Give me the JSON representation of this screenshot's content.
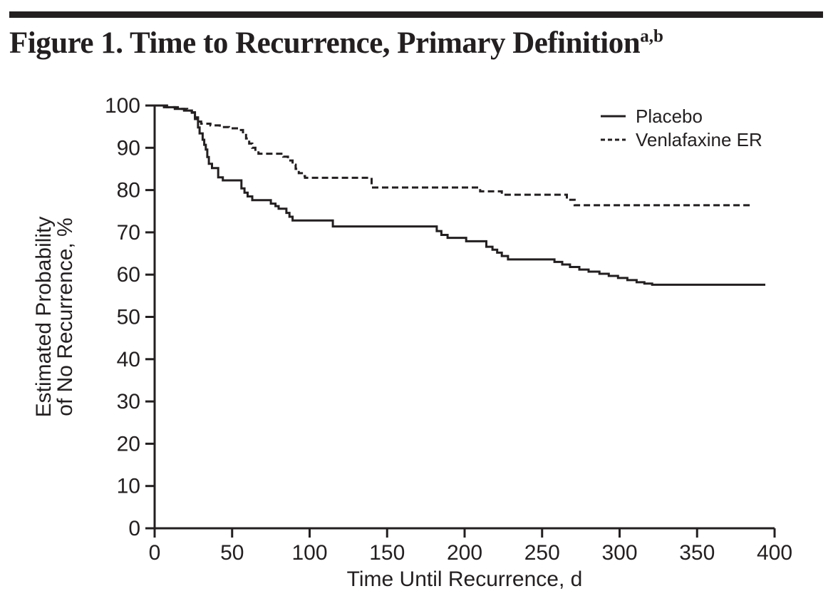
{
  "header": {
    "title": "Figure 1. Time to Recurrence, Primary Definition",
    "title_superscript": "a,b"
  },
  "colors": {
    "ink": "#231f20",
    "background": "#ffffff"
  },
  "chart_data": {
    "type": "line",
    "subtype": "kaplan-meier-step",
    "title": "",
    "xlabel": "Time Until Recurrence, d",
    "ylabel_lines": [
      "Estimated Probability",
      "of No Recurrence, %"
    ],
    "xlim": [
      0,
      400
    ],
    "ylim": [
      0,
      100
    ],
    "xticks": [
      0,
      50,
      100,
      150,
      200,
      250,
      300,
      350,
      400
    ],
    "yticks": [
      0,
      10,
      20,
      30,
      40,
      50,
      60,
      70,
      80,
      90,
      100
    ],
    "grid": false,
    "legend": {
      "position": "top-right",
      "entries": [
        {
          "label": "Placebo",
          "style": "solid"
        },
        {
          "label": "Venlafaxine ER",
          "style": "dashed"
        }
      ]
    },
    "series": [
      {
        "name": "Placebo",
        "style": "solid",
        "points": [
          [
            0,
            100
          ],
          [
            6,
            99.6
          ],
          [
            13,
            99.2
          ],
          [
            19,
            98.8
          ],
          [
            24,
            98.4
          ],
          [
            26,
            96.8
          ],
          [
            28,
            94.8
          ],
          [
            29,
            93.4
          ],
          [
            31,
            91.9
          ],
          [
            32,
            90.7
          ],
          [
            33,
            89.6
          ],
          [
            34,
            87.8
          ],
          [
            35,
            86.2
          ],
          [
            37,
            85.2
          ],
          [
            41,
            83.0
          ],
          [
            44,
            82.3
          ],
          [
            56,
            80.4
          ],
          [
            58,
            79.4
          ],
          [
            60,
            78.5
          ],
          [
            63,
            77.6
          ],
          [
            75,
            76.8
          ],
          [
            78,
            76.2
          ],
          [
            80,
            75.6
          ],
          [
            85,
            74.6
          ],
          [
            87,
            73.7
          ],
          [
            89,
            72.8
          ],
          [
            115,
            71.4
          ],
          [
            182,
            70.3
          ],
          [
            185,
            69.4
          ],
          [
            189,
            68.7
          ],
          [
            201,
            67.9
          ],
          [
            214,
            66.6
          ],
          [
            218,
            65.9
          ],
          [
            221,
            65.2
          ],
          [
            224,
            64.4
          ],
          [
            228,
            63.6
          ],
          [
            258,
            63.0
          ],
          [
            263,
            62.4
          ],
          [
            268,
            61.8
          ],
          [
            274,
            61.2
          ],
          [
            280,
            60.7
          ],
          [
            287,
            60.2
          ],
          [
            293,
            59.7
          ],
          [
            299,
            59.2
          ],
          [
            305,
            58.7
          ],
          [
            311,
            58.2
          ],
          [
            316,
            57.9
          ],
          [
            321,
            57.6
          ],
          [
            394,
            57.6
          ]
        ]
      },
      {
        "name": "Venlafaxine ER",
        "style": "dashed",
        "points": [
          [
            0,
            100
          ],
          [
            8,
            99.6
          ],
          [
            15,
            99.2
          ],
          [
            21,
            98.8
          ],
          [
            24,
            98.3
          ],
          [
            26,
            97.2
          ],
          [
            28,
            96.2
          ],
          [
            30,
            95.7
          ],
          [
            36,
            95.3
          ],
          [
            42,
            94.9
          ],
          [
            48,
            94.6
          ],
          [
            54,
            94.2
          ],
          [
            57,
            93.4
          ],
          [
            59,
            92.2
          ],
          [
            61,
            91.0
          ],
          [
            63,
            90.0
          ],
          [
            65,
            89.2
          ],
          [
            67,
            88.6
          ],
          [
            83,
            87.9
          ],
          [
            86,
            87.0
          ],
          [
            89,
            86.0
          ],
          [
            91,
            85.0
          ],
          [
            93,
            84.0
          ],
          [
            95,
            83.3
          ],
          [
            97,
            82.9
          ],
          [
            140,
            80.6
          ],
          [
            210,
            79.7
          ],
          [
            224,
            78.9
          ],
          [
            266,
            77.7
          ],
          [
            271,
            76.4
          ],
          [
            384,
            76.4
          ]
        ]
      }
    ]
  }
}
